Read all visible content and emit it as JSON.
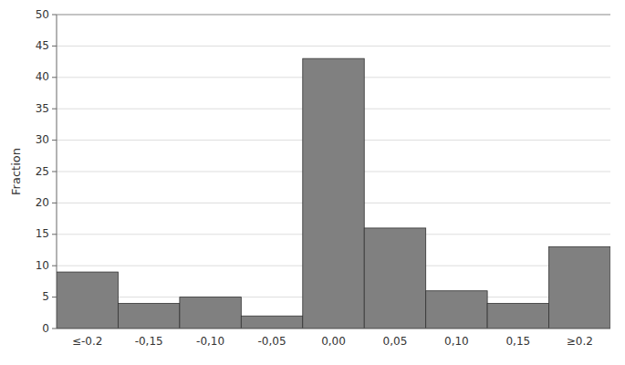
{
  "chart_data": {
    "type": "bar",
    "categories": [
      "≤-0.2",
      "-0,15",
      "-0,10",
      "-0,05",
      "0,00",
      "0,05",
      "0,10",
      "0,15",
      "≥0.2"
    ],
    "values": [
      9,
      4,
      5,
      2,
      43,
      16,
      6,
      4,
      13
    ],
    "color": "#808080",
    "ylabel": "Fraction",
    "ylim": [
      0,
      50
    ],
    "yticks": [
      0,
      5,
      10,
      15,
      20,
      25,
      30,
      35,
      40,
      45,
      50
    ],
    "grid": true
  }
}
